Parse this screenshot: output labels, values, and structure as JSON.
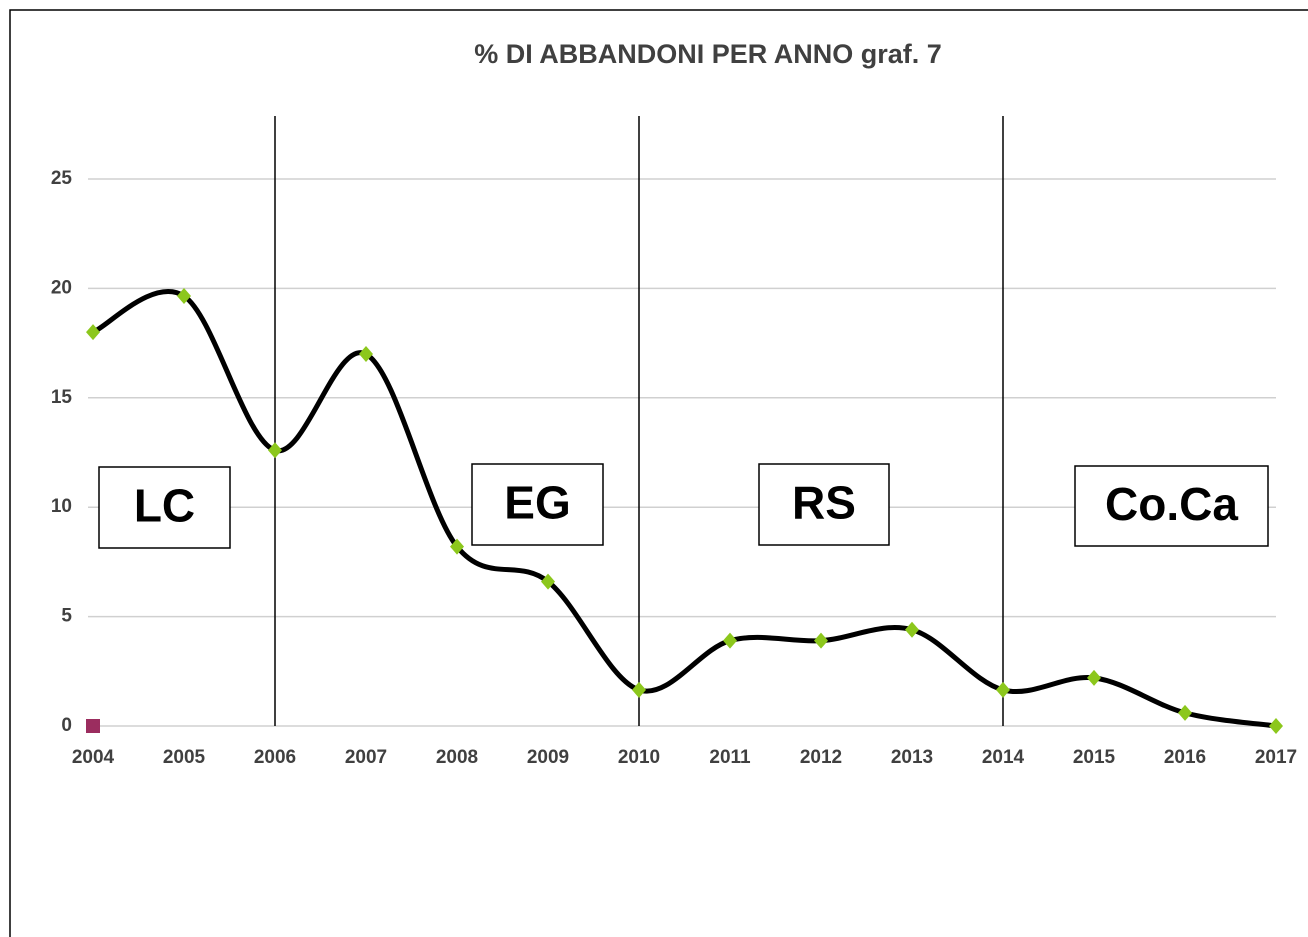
{
  "chart_data": {
    "type": "line",
    "title": "% DI ABBANDONI PER ANNO graf. 7",
    "categories": [
      "2004",
      "2005",
      "2006",
      "2007",
      "2008",
      "2009",
      "2010",
      "2011",
      "2012",
      "2013",
      "2014",
      "2015",
      "2016",
      "2017"
    ],
    "series": [
      {
        "color": "#000000",
        "marker_color": "#8cc71c",
        "values": [
          18.0,
          19.65,
          12.6,
          17.0,
          8.2,
          6.6,
          1.65,
          3.9,
          3.9,
          4.4,
          1.65,
          2.2,
          0.6,
          0
        ]
      },
      {
        "color": "#9b2d5f",
        "values": [
          0,
          null,
          null,
          null,
          null,
          null,
          null,
          null,
          null,
          null,
          null,
          null,
          null,
          null
        ]
      }
    ],
    "ylim": [
      0,
      28
    ],
    "yticks": [
      0,
      5,
      10,
      15,
      20,
      25
    ],
    "grid": true,
    "boundaries": [
      "2006",
      "2010",
      "2014"
    ],
    "annotations": [
      "LC",
      "EG",
      "RS",
      "Co.Ca"
    ]
  }
}
